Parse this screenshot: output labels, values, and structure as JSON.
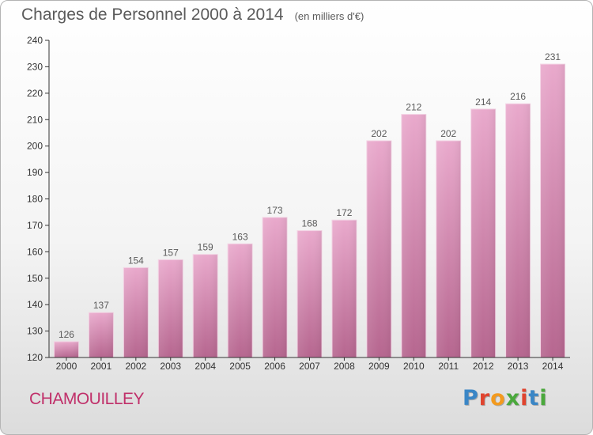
{
  "header": {
    "title": "Charges de Personnel 2000 à 2014",
    "unit": "(en milliers d'€)"
  },
  "footer": {
    "town": "CHAMOUILLEY",
    "logo": "Proxiti",
    "logo_colors": [
      "#3a86c6",
      "#e0442f",
      "#f39a1e",
      "#4aa83c",
      "#e0442f",
      "#3a86c6",
      "#4aa83c"
    ]
  },
  "colors": {
    "bar_top": "#e9a9cc",
    "bar_bottom": "#b6668f",
    "town": "#c0306a",
    "text": "#5a5a5a"
  },
  "chart_data": {
    "type": "bar",
    "title": "Charges de Personnel 2000 à 2014",
    "subtitle": "(en milliers d'€)",
    "categories": [
      "2000",
      "2001",
      "2002",
      "2003",
      "2004",
      "2005",
      "2006",
      "2007",
      "2008",
      "2009",
      "2010",
      "2011",
      "2012",
      "2013",
      "2014"
    ],
    "values": [
      126,
      137,
      154,
      157,
      159,
      163,
      173,
      168,
      172,
      202,
      212,
      202,
      214,
      216,
      231
    ],
    "ylim": [
      120,
      240
    ],
    "yticks": [
      120,
      130,
      140,
      150,
      160,
      170,
      180,
      190,
      200,
      210,
      220,
      230,
      240
    ],
    "grid": false,
    "data_labels": true
  }
}
